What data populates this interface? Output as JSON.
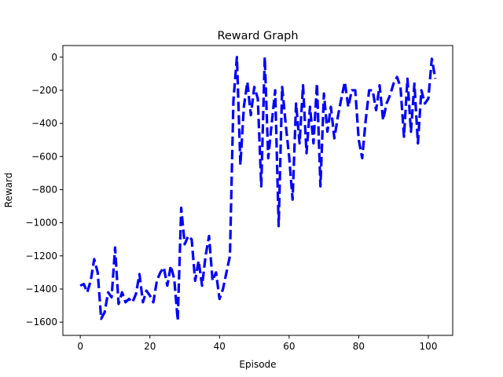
{
  "chart_data": {
    "type": "line",
    "title": "Reward Graph",
    "xlabel": "Episode",
    "ylabel": "Reward",
    "xlim": [
      -5,
      107
    ],
    "ylim": [
      -1680,
      70
    ],
    "xticks": [
      0,
      20,
      40,
      60,
      80,
      100
    ],
    "yticks": [
      -1600,
      -1400,
      -1200,
      -1000,
      -800,
      -600,
      -400,
      -200,
      0
    ],
    "grid": false,
    "legend": "none",
    "series": [
      {
        "color": "#0000ff",
        "style": "dashed",
        "x": [
          0,
          1,
          2,
          3,
          4,
          5,
          6,
          7,
          8,
          9,
          10,
          11,
          12,
          13,
          14,
          15,
          16,
          17,
          18,
          19,
          20,
          21,
          22,
          23,
          24,
          25,
          26,
          27,
          28,
          29,
          30,
          31,
          32,
          33,
          34,
          35,
          36,
          37,
          38,
          39,
          40,
          41,
          42,
          43,
          44,
          45,
          46,
          47,
          48,
          49,
          50,
          51,
          52,
          53,
          54,
          55,
          56,
          57,
          58,
          59,
          60,
          61,
          62,
          63,
          64,
          65,
          66,
          67,
          68,
          69,
          70,
          71,
          72,
          73,
          74,
          75,
          76,
          77,
          78,
          79,
          80,
          81,
          82,
          83,
          84,
          85,
          86,
          87,
          88,
          89,
          90,
          91,
          92,
          93,
          94,
          95,
          96,
          97,
          98,
          99,
          100,
          101,
          102
        ],
        "y": [
          -1380,
          -1370,
          -1420,
          -1350,
          -1220,
          -1300,
          -1580,
          -1540,
          -1420,
          -1450,
          -1150,
          -1490,
          -1420,
          -1480,
          -1460,
          -1480,
          -1430,
          -1310,
          -1480,
          -1410,
          -1440,
          -1480,
          -1350,
          -1300,
          -1270,
          -1380,
          -1260,
          -1340,
          -1590,
          -910,
          -1130,
          -1080,
          -1100,
          -1350,
          -1230,
          -1380,
          -1200,
          -1080,
          -1350,
          -1300,
          -1460,
          -1400,
          -1300,
          -1200,
          -260,
          0,
          -650,
          -300,
          -150,
          -350,
          -180,
          -250,
          -780,
          0,
          -610,
          -400,
          -200,
          -1020,
          -180,
          -400,
          -600,
          -860,
          -280,
          -520,
          -170,
          -580,
          -300,
          -520,
          -160,
          -780,
          -220,
          -450,
          -300,
          -490,
          -360,
          -250,
          -150,
          -300,
          -200,
          -200,
          -500,
          -610,
          -380,
          -200,
          -200,
          -320,
          -170,
          -380,
          -280,
          -230,
          -160,
          -120,
          -180,
          -480,
          -130,
          -450,
          -160,
          -520,
          -200,
          -280,
          -250,
          -10,
          -130
        ]
      }
    ]
  }
}
